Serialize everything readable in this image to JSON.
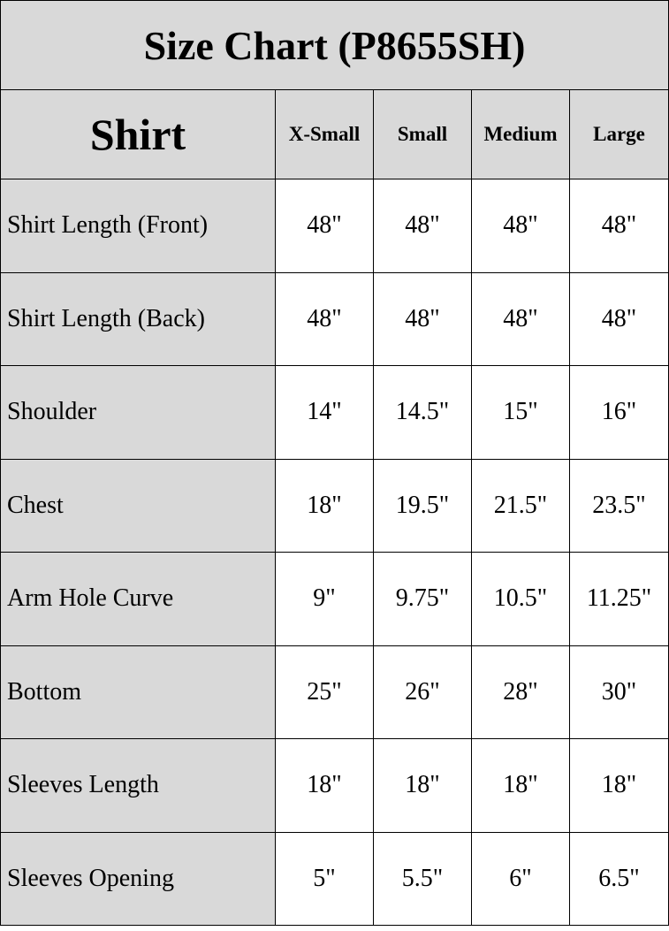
{
  "title": "Size Chart (P8655SH)",
  "header": {
    "category": "Shirt",
    "sizes": [
      "X-Small",
      "Small",
      "Medium",
      "Large"
    ]
  },
  "rows": [
    {
      "label": "Shirt Length (Front)",
      "values": [
        "48\"",
        "48\"",
        "48\"",
        "48\""
      ]
    },
    {
      "label": "Shirt Length (Back)",
      "values": [
        "48\"",
        "48\"",
        "48\"",
        "48\""
      ]
    },
    {
      "label": "Shoulder",
      "values": [
        "14\"",
        "14.5\"",
        "15\"",
        "16\""
      ]
    },
    {
      "label": "Chest",
      "values": [
        "18\"",
        "19.5\"",
        "21.5\"",
        "23.5\""
      ]
    },
    {
      "label": "Arm Hole Curve",
      "values": [
        "9\"",
        "9.75\"",
        "10.5\"",
        "11.25\""
      ]
    },
    {
      "label": "Bottom",
      "values": [
        "25\"",
        "26\"",
        "28\"",
        "30\""
      ]
    },
    {
      "label": "Sleeves Length",
      "values": [
        "18\"",
        "18\"",
        "18\"",
        "18\""
      ]
    },
    {
      "label": "Sleeves Opening",
      "values": [
        "5\"",
        "5.5\"",
        "6\"",
        "6.5\""
      ]
    }
  ],
  "colors": {
    "header_bg": "#d9d9d9",
    "cell_bg": "#ffffff",
    "border": "#000000"
  }
}
